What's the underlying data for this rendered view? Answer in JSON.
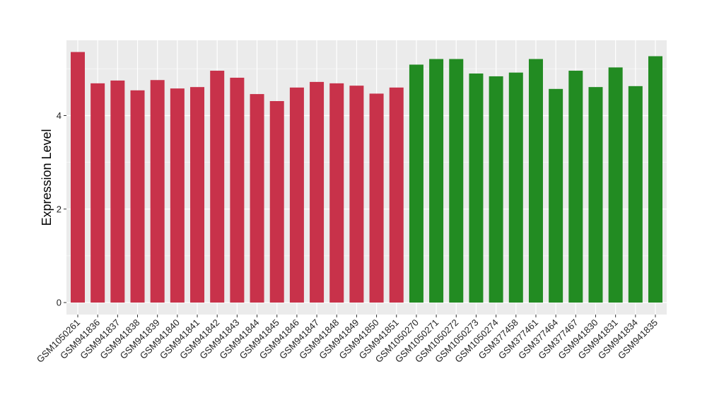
{
  "chart_data": {
    "type": "bar",
    "title": "",
    "xlabel": "",
    "ylabel": "Expression Level",
    "ylim": [
      0,
      5.6
    ],
    "yticks": [
      0,
      2,
      4
    ],
    "grid": true,
    "legend": "none",
    "categories": [
      "GSM1050261",
      "GSM941836",
      "GSM941837",
      "GSM941838",
      "GSM941839",
      "GSM941840",
      "GSM941841",
      "GSM941842",
      "GSM941843",
      "GSM941844",
      "GSM941845",
      "GSM941846",
      "GSM941847",
      "GSM941848",
      "GSM941849",
      "GSM941850",
      "GSM941851",
      "GSM1050270",
      "GSM1050271",
      "GSM1050272",
      "GSM1050273",
      "GSM1050274",
      "GSM377458",
      "GSM377461",
      "GSM377464",
      "GSM377467",
      "GSM941830",
      "GSM941831",
      "GSM941834",
      "GSM941835"
    ],
    "values": [
      5.36,
      4.69,
      4.75,
      4.54,
      4.76,
      4.58,
      4.61,
      4.96,
      4.81,
      4.46,
      4.31,
      4.6,
      4.72,
      4.69,
      4.64,
      4.47,
      4.6,
      5.09,
      5.21,
      5.21,
      4.9,
      4.84,
      4.92,
      5.21,
      4.57,
      4.96,
      4.61,
      5.03,
      4.63,
      5.27
    ],
    "bar_colors": [
      "#c8324a",
      "#c8324a",
      "#c8324a",
      "#c8324a",
      "#c8324a",
      "#c8324a",
      "#c8324a",
      "#c8324a",
      "#c8324a",
      "#c8324a",
      "#c8324a",
      "#c8324a",
      "#c8324a",
      "#c8324a",
      "#c8324a",
      "#c8324a",
      "#c8324a",
      "#228b22",
      "#228b22",
      "#228b22",
      "#228b22",
      "#228b22",
      "#228b22",
      "#228b22",
      "#228b22",
      "#228b22",
      "#228b22",
      "#228b22",
      "#228b22",
      "#228b22"
    ],
    "panel_background": "#ebebeb",
    "grid_color": "#ffffff"
  }
}
